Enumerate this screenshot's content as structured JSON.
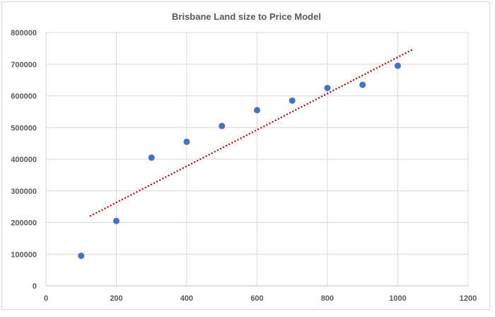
{
  "chart_data": {
    "type": "scatter",
    "title": "Brisbane Land size to Price Model",
    "xlabel": "",
    "ylabel": "",
    "xlim": [
      0,
      1200
    ],
    "ylim": [
      0,
      800000
    ],
    "x_ticks": [
      "0",
      "200",
      "400",
      "600",
      "800",
      "1000",
      "1200"
    ],
    "y_ticks": [
      "0",
      "100000",
      "200000",
      "300000",
      "400000",
      "500000",
      "600000",
      "700000",
      "800000"
    ],
    "grid": true,
    "legend": "none",
    "series": [
      {
        "x": [
          100,
          200,
          300,
          400,
          500,
          600,
          700,
          800,
          900,
          1000
        ],
        "y": [
          95000,
          205000,
          405000,
          455000,
          505000,
          555000,
          585000,
          625000,
          635000,
          695000
        ],
        "color": "#4472c4"
      }
    ],
    "trendline": {
      "type": "linear",
      "x": [
        125,
        1045
      ],
      "y": [
        220000,
        748000
      ],
      "color": "#c00000",
      "style": "dotted"
    }
  }
}
